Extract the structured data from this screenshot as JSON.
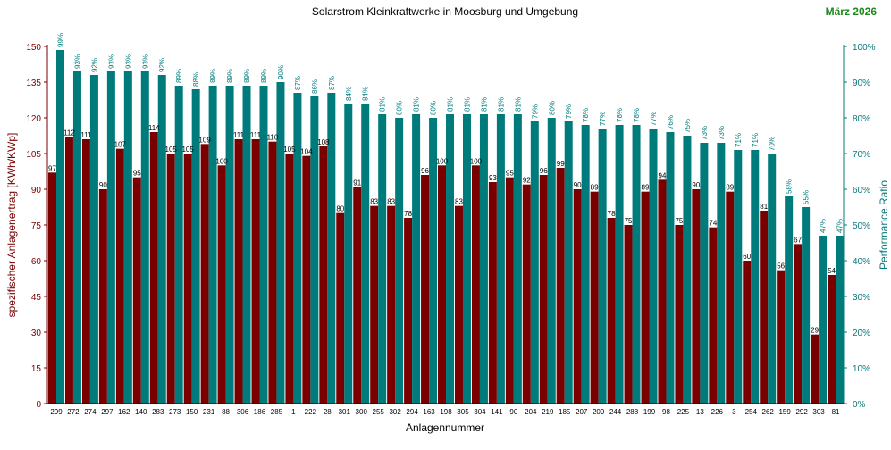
{
  "header": {
    "title": "Solarstrom Kleinkraftwerke in Moosburg und Umgebung",
    "date": "März 2026"
  },
  "chart_data": {
    "type": "bar",
    "title": "Solarstrom Kleinkraftwerke in Moosburg und Umgebung",
    "xlabel": "Anlagennummer",
    "ylabel": "spezifischer Anlagenertrag  [KWh/KWp]",
    "y2label": "Performance Ratio",
    "ylim": [
      0,
      150
    ],
    "y2lim": [
      0,
      100
    ],
    "yticks": [
      "0",
      "15",
      "30",
      "45",
      "60",
      "75",
      "90",
      "105",
      "120",
      "135",
      "150"
    ],
    "y2ticks": [
      "0%",
      "10%",
      "20%",
      "30%",
      "40%",
      "50%",
      "60%",
      "70%",
      "80%",
      "90%",
      "100%"
    ],
    "colors": {
      "yield": "#7a0000",
      "pr": "#007b7b",
      "yield_axis": "#7a0000",
      "pr_axis": "#0a7a7a"
    },
    "categories": [
      "299",
      "272",
      "274",
      "297",
      "162",
      "140",
      "283",
      "273",
      "150",
      "231",
      "88",
      "306",
      "186",
      "285",
      "1",
      "222",
      "28",
      "301",
      "300",
      "255",
      "302",
      "294",
      "163",
      "198",
      "305",
      "304",
      "141",
      "90",
      "204",
      "219",
      "185",
      "207",
      "209",
      "244",
      "288",
      "199",
      "98",
      "225",
      "13",
      "226",
      "3",
      "254",
      "262",
      "159",
      "292",
      "303",
      "81"
    ],
    "series": [
      {
        "name": "spezifischer Anlagenertrag",
        "axis": "left",
        "values": [
          97,
          112,
          111,
          90,
          107,
          95,
          114,
          105,
          105,
          109,
          100,
          111,
          111,
          110,
          105,
          104,
          108,
          80,
          91,
          83,
          83,
          78,
          96,
          100,
          83,
          100,
          93,
          95,
          92,
          96,
          99,
          90,
          89,
          78,
          75,
          89,
          94,
          75,
          90,
          74,
          89,
          60,
          81,
          56,
          67,
          29,
          54
        ]
      },
      {
        "name": "Performance Ratio",
        "axis": "right",
        "values": [
          99,
          93,
          92,
          93,
          93,
          93,
          92,
          89,
          88,
          89,
          89,
          89,
          89,
          90,
          87,
          86,
          87,
          84,
          84,
          81,
          80,
          81,
          80,
          81,
          81,
          81,
          81,
          81,
          79,
          80,
          79,
          78,
          77,
          78,
          78,
          77,
          76,
          75,
          73,
          73,
          71,
          71,
          70,
          58,
          55,
          47,
          47
        ],
        "labels": [
          "99%",
          "93%",
          "92%",
          "93%",
          "93%",
          "93%",
          "92%",
          "89%",
          "88%",
          "89%",
          "89%",
          "89%",
          "89%",
          "90%",
          "87%",
          "86%",
          "87%",
          "84%",
          "84%",
          "81%",
          "80%",
          "81%",
          "80%",
          "81%",
          "81%",
          "81%",
          "81%",
          "81%",
          "79%",
          "80%",
          "79%",
          "78%",
          "77%",
          "78%",
          "78%",
          "77%",
          "76%",
          "75%",
          "73%",
          "73%",
          "71%",
          "71%",
          "70%",
          "58%",
          "55%",
          "47%",
          "47%"
        ]
      }
    ]
  }
}
